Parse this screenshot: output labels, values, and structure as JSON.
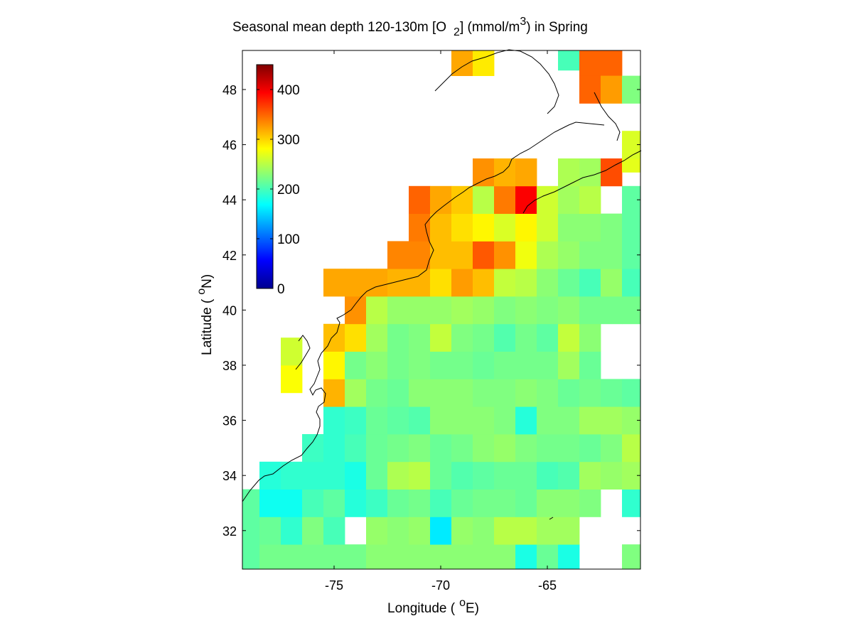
{
  "chart_data": {
    "type": "heatmap",
    "title": "Seasonal mean depth 120-130m [O",
    "title_sub": "2",
    "title_rest": "] (mmol/m",
    "title_sup": "3",
    "title_end": ") in  Spring",
    "xlabel": "Longitude (",
    "xlabel_sup": "o",
    "xlabel_end": "E)",
    "ylabel": "Latitude (",
    "ylabel_sup": "o",
    "ylabel_end": "N)",
    "xlim": [
      -79.2,
      -60.5
    ],
    "ylim": [
      30.5,
      49.5
    ],
    "x_ticks": [
      -75,
      -70,
      -65
    ],
    "x_tick_labels": [
      "-75",
      "-70",
      "-65"
    ],
    "y_ticks": [
      32,
      34,
      36,
      38,
      40,
      42,
      44,
      46,
      48
    ],
    "y_tick_labels": [
      "32",
      "34",
      "36",
      "38",
      "40",
      "42",
      "44",
      "46",
      "48"
    ],
    "colorbar": {
      "colormap": "jet",
      "clim": [
        0,
        450
      ],
      "ticks": [
        0,
        100,
        200,
        300,
        400
      ],
      "tick_labels": [
        "0",
        "100",
        "200",
        "300",
        "400"
      ],
      "placement": "upper-left inside axes"
    },
    "grid": false,
    "cell_size_deg": 1,
    "cells": [
      [
        -79,
        31,
        210
      ],
      [
        -78,
        31,
        220
      ],
      [
        -77,
        31,
        220
      ],
      [
        -76,
        31,
        220
      ],
      [
        -75,
        31,
        220
      ],
      [
        -74,
        31,
        220
      ],
      [
        -73,
        31,
        230
      ],
      [
        -72,
        31,
        230
      ],
      [
        -71,
        31,
        230
      ],
      [
        -70,
        31,
        230
      ],
      [
        -69,
        31,
        230
      ],
      [
        -68,
        31,
        230
      ],
      [
        -67,
        31,
        230
      ],
      [
        -66,
        31,
        180
      ],
      [
        -65,
        31,
        215
      ],
      [
        -64,
        31,
        180
      ],
      [
        -61,
        31,
        225
      ],
      [
        -79,
        32,
        210
      ],
      [
        -78,
        32,
        215
      ],
      [
        -77,
        32,
        190
      ],
      [
        -76,
        32,
        225
      ],
      [
        -75,
        32,
        200
      ],
      [
        -73,
        32,
        235
      ],
      [
        -72,
        32,
        230
      ],
      [
        -71,
        32,
        235
      ],
      [
        -70,
        32,
        160
      ],
      [
        -69,
        32,
        235
      ],
      [
        -68,
        32,
        230
      ],
      [
        -67,
        32,
        250
      ],
      [
        -66,
        32,
        250
      ],
      [
        -65,
        32,
        240
      ],
      [
        -64,
        32,
        240
      ],
      [
        -79,
        33,
        210
      ],
      [
        -78,
        33,
        175
      ],
      [
        -77,
        33,
        175
      ],
      [
        -76,
        33,
        200
      ],
      [
        -75,
        33,
        210
      ],
      [
        -74,
        33,
        185
      ],
      [
        -73,
        33,
        195
      ],
      [
        -72,
        33,
        215
      ],
      [
        -71,
        33,
        220
      ],
      [
        -70,
        33,
        200
      ],
      [
        -69,
        33,
        215
      ],
      [
        -68,
        33,
        220
      ],
      [
        -67,
        33,
        220
      ],
      [
        -66,
        33,
        215
      ],
      [
        -65,
        33,
        230
      ],
      [
        -64,
        33,
        230
      ],
      [
        -63,
        33,
        225
      ],
      [
        -61,
        33,
        190
      ],
      [
        -78,
        34,
        185
      ],
      [
        -77,
        34,
        190
      ],
      [
        -76,
        34,
        190
      ],
      [
        -75,
        34,
        190
      ],
      [
        -74,
        34,
        180
      ],
      [
        -73,
        34,
        215
      ],
      [
        -72,
        34,
        245
      ],
      [
        -71,
        34,
        250
      ],
      [
        -70,
        34,
        215
      ],
      [
        -69,
        34,
        205
      ],
      [
        -68,
        34,
        210
      ],
      [
        -67,
        34,
        215
      ],
      [
        -66,
        34,
        215
      ],
      [
        -65,
        34,
        200
      ],
      [
        -64,
        34,
        205
      ],
      [
        -63,
        34,
        240
      ],
      [
        -62,
        34,
        235
      ],
      [
        -61,
        34,
        240
      ],
      [
        -76,
        35,
        195
      ],
      [
        -75,
        35,
        190
      ],
      [
        -74,
        35,
        200
      ],
      [
        -73,
        35,
        215
      ],
      [
        -72,
        35,
        220
      ],
      [
        -71,
        35,
        225
      ],
      [
        -70,
        35,
        215
      ],
      [
        -69,
        35,
        220
      ],
      [
        -68,
        35,
        230
      ],
      [
        -67,
        35,
        235
      ],
      [
        -66,
        35,
        225
      ],
      [
        -65,
        35,
        220
      ],
      [
        -64,
        35,
        220
      ],
      [
        -63,
        35,
        215
      ],
      [
        -62,
        35,
        225
      ],
      [
        -61,
        35,
        250
      ],
      [
        -75,
        36,
        190
      ],
      [
        -74,
        36,
        195
      ],
      [
        -73,
        36,
        215
      ],
      [
        -72,
        36,
        210
      ],
      [
        -71,
        36,
        205
      ],
      [
        -70,
        36,
        230
      ],
      [
        -69,
        36,
        230
      ],
      [
        -68,
        36,
        230
      ],
      [
        -67,
        36,
        225
      ],
      [
        -66,
        36,
        185
      ],
      [
        -65,
        36,
        225
      ],
      [
        -64,
        36,
        225
      ],
      [
        -63,
        36,
        240
      ],
      [
        -62,
        36,
        240
      ],
      [
        -61,
        36,
        235
      ],
      [
        -75,
        37,
        315
      ],
      [
        -74,
        37,
        240
      ],
      [
        -73,
        37,
        220
      ],
      [
        -72,
        37,
        215
      ],
      [
        -71,
        37,
        230
      ],
      [
        -70,
        37,
        230
      ],
      [
        -69,
        37,
        230
      ],
      [
        -68,
        37,
        225
      ],
      [
        -67,
        37,
        225
      ],
      [
        -66,
        37,
        230
      ],
      [
        -65,
        37,
        225
      ],
      [
        -64,
        37,
        215
      ],
      [
        -63,
        37,
        220
      ],
      [
        -62,
        37,
        215
      ],
      [
        -61,
        37,
        210
      ],
      [
        -77,
        37.5,
        280
      ],
      [
        -75,
        38,
        285
      ],
      [
        -74,
        38,
        220
      ],
      [
        -73,
        38,
        230
      ],
      [
        -72,
        38,
        220
      ],
      [
        -71,
        38,
        225
      ],
      [
        -70,
        38,
        220
      ],
      [
        -69,
        38,
        220
      ],
      [
        -68,
        38,
        215
      ],
      [
        -67,
        38,
        220
      ],
      [
        -66,
        38,
        220
      ],
      [
        -65,
        38,
        220
      ],
      [
        -64,
        38,
        240
      ],
      [
        -63,
        38,
        215
      ],
      [
        -77,
        38.5,
        260
      ],
      [
        -75,
        39,
        310
      ],
      [
        -74,
        39,
        295
      ],
      [
        -73,
        39,
        240
      ],
      [
        -72,
        39,
        220
      ],
      [
        -71,
        39,
        225
      ],
      [
        -70,
        39,
        255
      ],
      [
        -69,
        39,
        225
      ],
      [
        -68,
        39,
        220
      ],
      [
        -67,
        39,
        205
      ],
      [
        -66,
        39,
        220
      ],
      [
        -65,
        39,
        210
      ],
      [
        -64,
        39,
        255
      ],
      [
        -63,
        39,
        230
      ],
      [
        -74,
        40,
        330
      ],
      [
        -73,
        40,
        250
      ],
      [
        -72,
        40,
        235
      ],
      [
        -71,
        40,
        235
      ],
      [
        -70,
        40,
        235
      ],
      [
        -69,
        40,
        240
      ],
      [
        -68,
        40,
        235
      ],
      [
        -67,
        40,
        225
      ],
      [
        -66,
        40,
        230
      ],
      [
        -65,
        40,
        225
      ],
      [
        -64,
        40,
        230
      ],
      [
        -63,
        40,
        220
      ],
      [
        -62,
        40,
        220
      ],
      [
        -61,
        40,
        220
      ],
      [
        -75,
        41,
        320
      ],
      [
        -74,
        41,
        320
      ],
      [
        -73,
        41,
        320
      ],
      [
        -72,
        41,
        315
      ],
      [
        -71,
        41,
        315
      ],
      [
        -70,
        41,
        295
      ],
      [
        -69,
        41,
        325
      ],
      [
        -68,
        41,
        310
      ],
      [
        -67,
        41,
        255
      ],
      [
        -66,
        41,
        250
      ],
      [
        -65,
        41,
        230
      ],
      [
        -64,
        41,
        215
      ],
      [
        -63,
        41,
        200
      ],
      [
        -62,
        41,
        235
      ],
      [
        -61,
        41,
        200
      ],
      [
        -72,
        42,
        335
      ],
      [
        -71,
        42,
        335
      ],
      [
        -70,
        42,
        310
      ],
      [
        -69,
        42,
        310
      ],
      [
        -68,
        42,
        355
      ],
      [
        -67,
        42,
        330
      ],
      [
        -66,
        42,
        275
      ],
      [
        -65,
        42,
        245
      ],
      [
        -64,
        42,
        235
      ],
      [
        -63,
        42,
        225
      ],
      [
        -62,
        42,
        225
      ],
      [
        -61,
        42,
        210
      ],
      [
        -71,
        43,
        340
      ],
      [
        -70,
        43,
        310
      ],
      [
        -69,
        43,
        295
      ],
      [
        -68,
        43,
        285
      ],
      [
        -67,
        43,
        265
      ],
      [
        -66,
        43,
        285
      ],
      [
        -65,
        43,
        260
      ],
      [
        -64,
        43,
        230
      ],
      [
        -63,
        43,
        230
      ],
      [
        -62,
        43,
        225
      ],
      [
        -61,
        43,
        210
      ],
      [
        -71,
        44,
        350
      ],
      [
        -70,
        44,
        320
      ],
      [
        -69,
        44,
        305
      ],
      [
        -68,
        44,
        250
      ],
      [
        -67,
        44,
        340
      ],
      [
        -66,
        44,
        395
      ],
      [
        -65,
        44,
        260
      ],
      [
        -64,
        44,
        240
      ],
      [
        -63,
        44,
        250
      ],
      [
        -61,
        44,
        210
      ],
      [
        -68,
        45,
        330
      ],
      [
        -67,
        45,
        315
      ],
      [
        -66,
        45,
        320
      ],
      [
        -64,
        45,
        245
      ],
      [
        -63,
        45,
        240
      ],
      [
        -62,
        45,
        360
      ],
      [
        -61,
        45.5,
        270
      ],
      [
        -61,
        46,
        265
      ],
      [
        -69,
        49,
        320
      ],
      [
        -68,
        49,
        290
      ],
      [
        -64,
        49.2,
        200
      ],
      [
        -63,
        49,
        350
      ],
      [
        -62,
        49,
        350
      ],
      [
        -63,
        48,
        350
      ],
      [
        -62,
        48,
        325
      ],
      [
        -61,
        48,
        225
      ]
    ]
  }
}
